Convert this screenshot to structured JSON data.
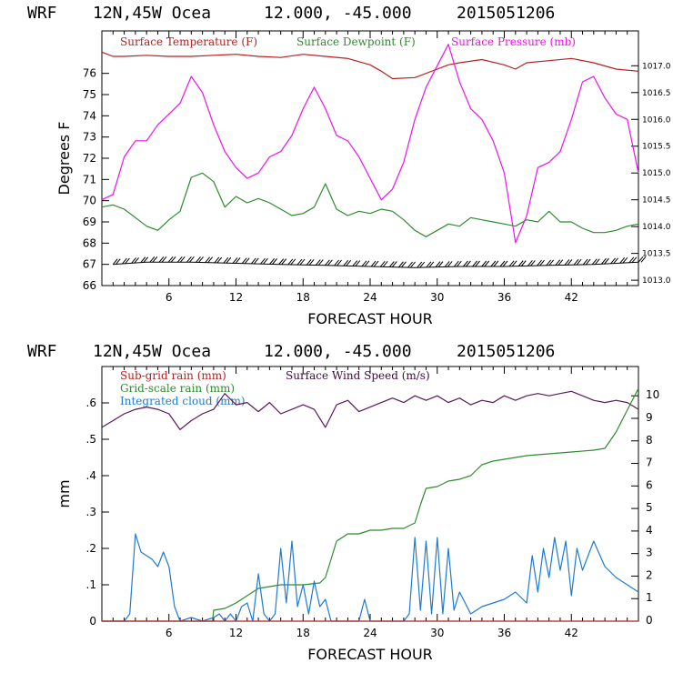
{
  "colors": {
    "temperature": "#b22222",
    "dewpoint": "#2e8b2e",
    "pressure": "#ee11ee",
    "wind": "#5a1a5a",
    "subgrid": "#b22222",
    "gridscale": "#2e8b2e",
    "cloud": "#1e7bd0"
  },
  "chart_data": [
    {
      "type": "line",
      "header": {
        "model": "WRF",
        "location": "12N,45W Ocea",
        "coords": "12.000, -45.000",
        "init": "2015051206"
      },
      "xlabel": "FORECAST HOUR",
      "ylabel": "Degrees F",
      "xlim": [
        0,
        48
      ],
      "ylim": [
        66,
        78
      ],
      "y2lim": [
        1012.9,
        1017.65
      ],
      "xticks": [
        "6",
        "12",
        "18",
        "24",
        "30",
        "36",
        "42"
      ],
      "yticks": [
        "66",
        "67",
        "68",
        "69",
        "70",
        "71",
        "72",
        "73",
        "74",
        "75",
        "76"
      ],
      "y2ticks": [
        "1013.0",
        "1013.5",
        "1014.0",
        "1014.5",
        "1015.0",
        "1015.5",
        "1016.0",
        "1016.5",
        "1017.0"
      ],
      "legend": [
        "Surface Temperature (F)",
        "Surface Dewpoint (F)",
        "Surface Pressure (mb)"
      ],
      "series": [
        {
          "name": "Surface Temperature (F)",
          "axis": "left",
          "x": [
            0,
            1,
            2,
            4,
            6,
            8,
            10,
            12,
            14,
            16,
            18,
            20,
            22,
            24,
            25,
            26,
            28,
            30,
            31,
            32,
            34,
            36,
            37,
            38,
            40,
            42,
            44,
            46,
            48
          ],
          "y": [
            77.0,
            76.8,
            76.8,
            76.85,
            76.8,
            76.8,
            76.85,
            76.9,
            76.8,
            76.75,
            76.9,
            76.8,
            76.7,
            76.4,
            76.1,
            75.75,
            75.8,
            76.2,
            76.4,
            76.5,
            76.65,
            76.4,
            76.2,
            76.5,
            76.6,
            76.7,
            76.5,
            76.2,
            76.1
          ]
        },
        {
          "name": "Surface Dewpoint (F)",
          "axis": "left",
          "x": [
            0,
            1,
            2,
            3,
            4,
            5,
            6,
            7,
            8,
            9,
            10,
            11,
            12,
            13,
            14,
            15,
            16,
            17,
            18,
            19,
            20,
            21,
            22,
            23,
            24,
            25,
            26,
            27,
            28,
            29,
            30,
            31,
            32,
            33,
            34,
            35,
            36,
            37,
            38,
            39,
            40,
            41,
            42,
            43,
            44,
            45,
            46,
            47,
            48
          ],
          "y": [
            69.7,
            69.8,
            69.6,
            69.2,
            68.8,
            68.6,
            69.1,
            69.5,
            71.1,
            71.3,
            70.9,
            69.7,
            70.2,
            69.9,
            70.1,
            69.9,
            69.6,
            69.3,
            69.4,
            69.7,
            70.8,
            69.6,
            69.3,
            69.5,
            69.4,
            69.6,
            69.5,
            69.1,
            68.6,
            68.3,
            68.6,
            68.9,
            68.8,
            69.2,
            69.1,
            69.0,
            68.9,
            68.8,
            69.1,
            69.0,
            69.5,
            69.0,
            69.0,
            68.7,
            68.5,
            68.5,
            68.6,
            68.8,
            68.9
          ]
        },
        {
          "name": "Surface Pressure (mb)",
          "axis": "right",
          "x": [
            0,
            1,
            2,
            3,
            4,
            5,
            6,
            7,
            8,
            9,
            10,
            11,
            12,
            13,
            14,
            15,
            16,
            17,
            18,
            19,
            20,
            21,
            22,
            23,
            24,
            25,
            26,
            27,
            28,
            29,
            30,
            31,
            32,
            33,
            34,
            35,
            36,
            37,
            38,
            39,
            40,
            41,
            42,
            43,
            44,
            45,
            46,
            47,
            48
          ],
          "y": [
            1014.5,
            1014.6,
            1015.3,
            1015.6,
            1015.6,
            1015.9,
            1016.1,
            1016.3,
            1016.8,
            1016.5,
            1015.9,
            1015.4,
            1015.1,
            1014.9,
            1015.0,
            1015.3,
            1015.4,
            1015.7,
            1016.2,
            1016.6,
            1016.2,
            1015.7,
            1015.6,
            1015.3,
            1014.9,
            1014.5,
            1014.7,
            1015.2,
            1016.0,
            1016.6,
            1017.0,
            1017.4,
            1016.7,
            1016.2,
            1016.0,
            1015.6,
            1015.0,
            1013.7,
            1014.2,
            1015.1,
            1015.2,
            1015.4,
            1016.0,
            1016.7,
            1016.8,
            1016.4,
            1016.1,
            1016.0,
            1015.0
          ]
        },
        {
          "name": "",
          "axis": "left",
          "style": "barbs",
          "x": [
            1,
            4,
            8,
            12,
            16,
            20,
            24,
            28,
            32,
            36,
            40,
            44,
            48
          ],
          "y": [
            67.0,
            67.1,
            67.1,
            67.05,
            67.0,
            66.95,
            66.9,
            66.85,
            66.9,
            66.9,
            66.95,
            67.0,
            67.1
          ]
        }
      ]
    },
    {
      "type": "line",
      "header": {
        "model": "WRF",
        "location": "12N,45W Ocea",
        "coords": "12.000, -45.000",
        "init": "2015051206"
      },
      "xlabel": "FORECAST HOUR",
      "ylabel": "mm",
      "xlim": [
        0,
        48
      ],
      "ylim": [
        0,
        0.7
      ],
      "y2lim": [
        0,
        11.3
      ],
      "xticks": [
        "6",
        "12",
        "18",
        "24",
        "30",
        "36",
        "42"
      ],
      "yticks": [
        "0",
        ".1",
        ".2",
        ".3",
        ".4",
        ".5",
        ".6"
      ],
      "y2ticks": [
        "0",
        "1",
        "2",
        "3",
        "4",
        "5",
        "6",
        "7",
        "8",
        "9",
        "10"
      ],
      "legend": [
        "Sub-grid rain (mm)",
        "Surface Wind Speed (m/s)",
        "Grid-scale rain (mm)",
        "Integrated cloud (mm)"
      ],
      "series": [
        {
          "name": "Surface Wind Speed (m/s)",
          "axis": "right",
          "x": [
            0,
            1,
            2,
            3,
            4,
            5,
            6,
            7,
            8,
            9,
            10,
            11,
            12,
            13,
            14,
            15,
            16,
            17,
            18,
            19,
            20,
            21,
            22,
            23,
            24,
            25,
            26,
            27,
            28,
            29,
            30,
            31,
            32,
            33,
            34,
            35,
            36,
            37,
            38,
            39,
            40,
            41,
            42,
            43,
            44,
            45,
            46,
            47,
            48
          ],
          "y": [
            8.6,
            8.9,
            9.2,
            9.4,
            9.5,
            9.4,
            9.2,
            8.5,
            8.9,
            9.2,
            9.4,
            10.1,
            9.6,
            9.7,
            9.3,
            9.7,
            9.2,
            9.4,
            9.6,
            9.4,
            8.6,
            9.6,
            9.8,
            9.3,
            9.5,
            9.7,
            9.9,
            9.7,
            10.0,
            9.8,
            10.0,
            9.7,
            9.9,
            9.6,
            9.8,
            9.7,
            10.0,
            9.8,
            10.0,
            10.1,
            10.0,
            10.1,
            10.2,
            10.0,
            9.8,
            9.7,
            9.8,
            9.7,
            9.4
          ]
        },
        {
          "name": "Grid-scale rain (mm)",
          "axis": "left",
          "x": [
            0,
            9.9,
            10,
            11,
            12,
            13,
            14,
            15,
            16,
            18,
            19.5,
            20,
            20.5,
            21,
            22,
            23,
            24,
            25,
            26,
            27,
            28,
            28.5,
            29,
            30,
            31,
            32,
            33,
            34,
            35,
            36,
            37,
            38,
            40,
            42,
            44,
            45,
            46,
            47,
            48
          ],
          "y": [
            0,
            0,
            0.03,
            0.035,
            0.05,
            0.07,
            0.09,
            0.095,
            0.1,
            0.1,
            0.105,
            0.12,
            0.17,
            0.22,
            0.24,
            0.24,
            0.25,
            0.25,
            0.255,
            0.255,
            0.27,
            0.32,
            0.365,
            0.37,
            0.385,
            0.39,
            0.4,
            0.43,
            0.44,
            0.445,
            0.45,
            0.455,
            0.46,
            0.465,
            0.47,
            0.475,
            0.52,
            0.58,
            0.64
          ]
        },
        {
          "name": "Integrated cloud (mm)",
          "axis": "left",
          "x": [
            0,
            2,
            2.5,
            3,
            3.5,
            4,
            4.5,
            5,
            5.5,
            6,
            6.5,
            7,
            8,
            9,
            10,
            10.5,
            11,
            11.5,
            12,
            12.5,
            13,
            13.5,
            14,
            14.5,
            15,
            15.5,
            16,
            16.5,
            17,
            17.5,
            18,
            18.5,
            19,
            19.5,
            20,
            20.5,
            21,
            22,
            23,
            23.5,
            24,
            25,
            26,
            27,
            27.5,
            28,
            28.5,
            29,
            29.5,
            30,
            30.5,
            31,
            31.5,
            32,
            33,
            34,
            35,
            36,
            37,
            38,
            38.5,
            39,
            39.5,
            40,
            40.5,
            41,
            41.5,
            42,
            42.5,
            43,
            44,
            45,
            46,
            47,
            48
          ],
          "y": [
            0,
            0,
            0.02,
            0.24,
            0.19,
            0.18,
            0.17,
            0.15,
            0.19,
            0.15,
            0.04,
            0.0,
            0.01,
            0.0,
            0.01,
            0.02,
            0.0,
            0.02,
            0.0,
            0.04,
            0.05,
            0.0,
            0.13,
            0.02,
            0.0,
            0.02,
            0.2,
            0.05,
            0.22,
            0.04,
            0.1,
            0.02,
            0.11,
            0.04,
            0.06,
            0.0,
            0.0,
            0.0,
            0.0,
            0.06,
            0.0,
            0.0,
            0.0,
            0.0,
            0.02,
            0.23,
            0.03,
            0.22,
            0.02,
            0.23,
            0.02,
            0.2,
            0.03,
            0.08,
            0.02,
            0.04,
            0.05,
            0.06,
            0.08,
            0.05,
            0.18,
            0.08,
            0.2,
            0.12,
            0.23,
            0.14,
            0.22,
            0.07,
            0.2,
            0.14,
            0.22,
            0.15,
            0.12,
            0.1,
            0.08
          ]
        },
        {
          "name": "Sub-grid rain (mm)",
          "axis": "left",
          "x": [
            0,
            48
          ],
          "y": [
            0,
            0
          ]
        }
      ]
    }
  ]
}
